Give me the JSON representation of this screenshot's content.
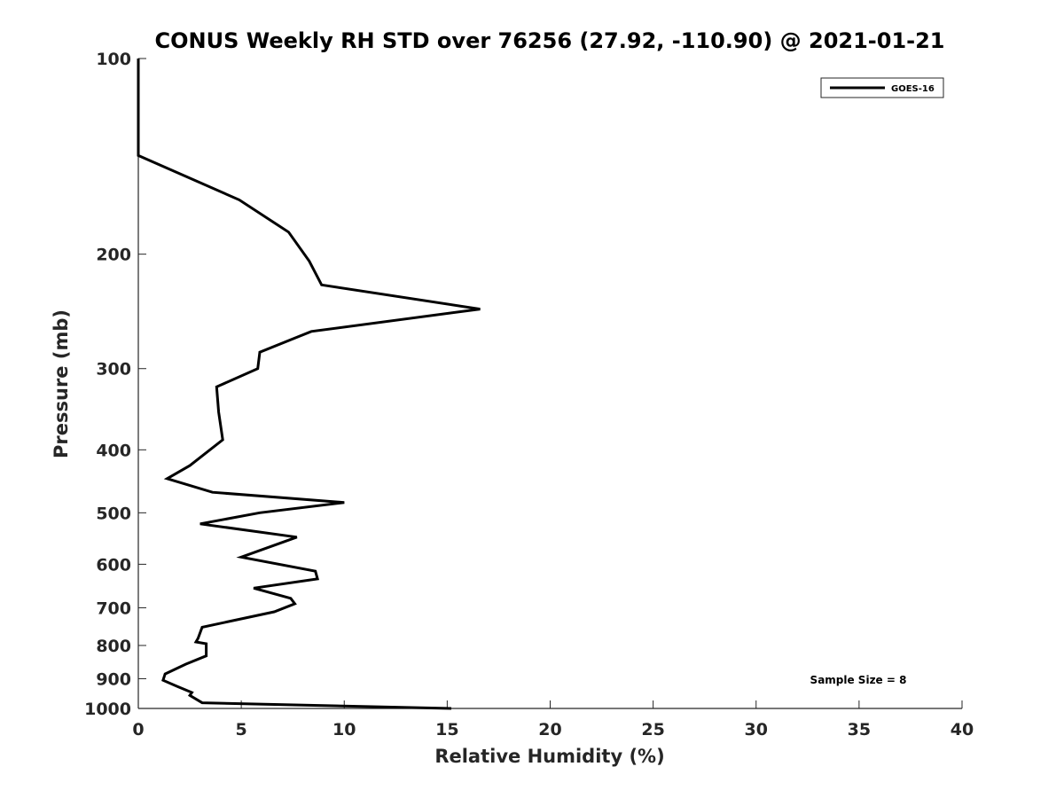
{
  "chart_data": {
    "type": "line",
    "title": "CONUS Weekly RH STD over 76256 (27.92, -110.90) @ 2021-01-21",
    "xlabel": "Relative Humidity (%)",
    "ylabel": "Pressure (mb)",
    "xlim": [
      0,
      40
    ],
    "ylim": [
      100,
      1000
    ],
    "y_scale": "log",
    "y_reversed": true,
    "x_ticks": [
      0,
      5,
      10,
      15,
      20,
      25,
      30,
      35,
      40
    ],
    "y_ticks": [
      100,
      200,
      300,
      400,
      500,
      600,
      700,
      800,
      900,
      1000
    ],
    "grid": false,
    "legend_position": "top-right",
    "annotation": "Sample Size = 8",
    "series": [
      {
        "name": "GOES-16",
        "color": "#000000",
        "x": [
          0,
          0,
          4.9,
          7.3,
          8.3,
          8.9,
          16.6,
          8.4,
          5.9,
          5.8,
          3.8,
          3.9,
          4.1,
          2.5,
          1.4,
          3.6,
          10.0,
          5.9,
          3.0,
          7.7,
          5.0,
          8.6,
          8.7,
          5.6,
          7.4,
          7.6,
          6.6,
          3.1,
          2.9,
          2.8,
          3.3,
          3.3,
          2.3,
          1.3,
          1.2,
          1.9,
          2.6,
          2.5,
          3.1,
          15.2
        ],
        "y": [
          100,
          141,
          165,
          185,
          205,
          223,
          243,
          263,
          283,
          300,
          320,
          350,
          386,
          423,
          443,
          465,
          482,
          500,
          520,
          545,
          585,
          615,
          632,
          653,
          677,
          690,
          710,
          750,
          780,
          790,
          795,
          830,
          855,
          885,
          905,
          925,
          945,
          955,
          980,
          1000
        ]
      }
    ]
  }
}
